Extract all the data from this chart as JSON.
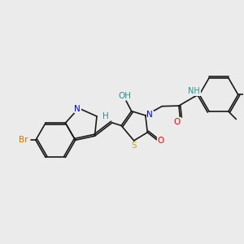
{
  "background_color": "#ebebeb",
  "bond_color": "#1a1a1a",
  "atom_colors": {
    "Br": "#cc7700",
    "N": "#0000ff",
    "NH": "#2a9090",
    "S": "#ccaa00",
    "O": "#ff0000",
    "H": "#2a9090",
    "OH": "#2a9090"
  },
  "figsize": [
    3.0,
    3.0
  ],
  "dpi": 100
}
